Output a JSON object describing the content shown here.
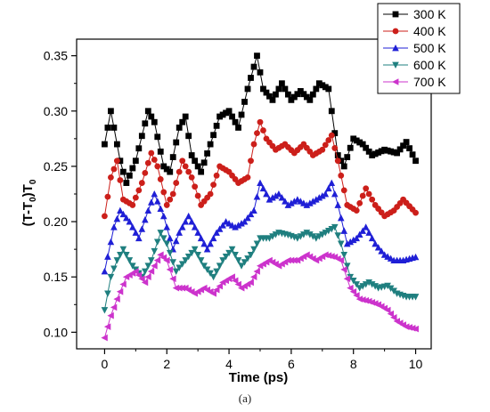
{
  "chart_data": {
    "type": "line",
    "xlabel": "Time (ps)",
    "ylabel": "(T-T0)T0",
    "ylabel_parts": {
      "a": "(T-T",
      "sub1": "0",
      "b": ")T",
      "sub2": "0"
    },
    "xlim": [
      -0.9,
      10.5
    ],
    "ylim": [
      0.085,
      0.365
    ],
    "xticks": [
      0,
      2,
      4,
      6,
      8,
      10
    ],
    "yticks": [
      0.1,
      0.15,
      0.2,
      0.25,
      0.3,
      0.35
    ],
    "ytick_labels": [
      "0.10",
      "0.15",
      "0.20",
      "0.25",
      "0.30",
      "0.35"
    ],
    "xtick_labels": [
      "0",
      "2",
      "4",
      "6",
      "8",
      "10"
    ],
    "grid": false,
    "legend_position": "top-right",
    "caption": "(a)",
    "series": [
      {
        "name": "300 K",
        "color": "#000000",
        "marker": "square",
        "x": [
          0,
          0.2,
          0.3,
          0.5,
          0.7,
          1.0,
          1.4,
          1.6,
          1.9,
          2.1,
          2.4,
          2.6,
          2.8,
          3.1,
          3.4,
          3.7,
          4.0,
          4.3,
          4.6,
          4.9,
          5.1,
          5.4,
          5.7,
          6.0,
          6.3,
          6.6,
          6.9,
          7.2,
          7.5,
          7.7,
          8.0,
          8.3,
          8.6,
          9.0,
          9.4,
          9.7,
          10.0
        ],
        "y": [
          0.27,
          0.3,
          0.285,
          0.255,
          0.235,
          0.255,
          0.3,
          0.29,
          0.25,
          0.245,
          0.285,
          0.295,
          0.26,
          0.245,
          0.27,
          0.295,
          0.3,
          0.285,
          0.32,
          0.35,
          0.32,
          0.31,
          0.325,
          0.31,
          0.318,
          0.31,
          0.325,
          0.32,
          0.26,
          0.25,
          0.275,
          0.27,
          0.26,
          0.265,
          0.262,
          0.272,
          0.255
        ]
      },
      {
        "name": "400 K",
        "color": "#cc1f1a",
        "marker": "circle",
        "x": [
          0,
          0.2,
          0.4,
          0.6,
          0.9,
          1.2,
          1.5,
          1.7,
          2.0,
          2.2,
          2.5,
          2.8,
          3.1,
          3.4,
          3.7,
          4.0,
          4.3,
          4.6,
          4.8,
          5.0,
          5.2,
          5.5,
          5.8,
          6.1,
          6.4,
          6.7,
          7.0,
          7.3,
          7.5,
          7.8,
          8.1,
          8.4,
          8.7,
          9.0,
          9.3,
          9.6,
          10.0
        ],
        "y": [
          0.205,
          0.24,
          0.255,
          0.22,
          0.215,
          0.235,
          0.262,
          0.25,
          0.215,
          0.225,
          0.255,
          0.24,
          0.215,
          0.225,
          0.25,
          0.245,
          0.235,
          0.24,
          0.27,
          0.29,
          0.275,
          0.265,
          0.27,
          0.262,
          0.27,
          0.26,
          0.265,
          0.278,
          0.255,
          0.215,
          0.21,
          0.23,
          0.215,
          0.205,
          0.21,
          0.22,
          0.208
        ]
      },
      {
        "name": "500 K",
        "color": "#1f1fd6",
        "marker": "triangle-up",
        "x": [
          0,
          0.3,
          0.5,
          0.8,
          1.1,
          1.4,
          1.6,
          1.9,
          2.2,
          2.4,
          2.7,
          3.0,
          3.3,
          3.6,
          3.9,
          4.2,
          4.5,
          4.8,
          5.0,
          5.3,
          5.6,
          5.9,
          6.2,
          6.5,
          6.8,
          7.1,
          7.3,
          7.5,
          7.8,
          8.1,
          8.4,
          8.7,
          9.0,
          9.3,
          9.6,
          10.0
        ],
        "y": [
          0.155,
          0.195,
          0.21,
          0.2,
          0.185,
          0.21,
          0.225,
          0.205,
          0.175,
          0.19,
          0.205,
          0.19,
          0.175,
          0.19,
          0.2,
          0.195,
          0.2,
          0.21,
          0.235,
          0.22,
          0.225,
          0.215,
          0.22,
          0.215,
          0.22,
          0.225,
          0.235,
          0.215,
          0.18,
          0.185,
          0.195,
          0.18,
          0.17,
          0.165,
          0.165,
          0.168
        ]
      },
      {
        "name": "600 K",
        "color": "#1f7f7f",
        "marker": "triangle-down",
        "x": [
          0,
          0.2,
          0.4,
          0.6,
          0.9,
          1.2,
          1.5,
          1.8,
          2.0,
          2.3,
          2.6,
          2.9,
          3.2,
          3.5,
          3.8,
          4.1,
          4.4,
          4.7,
          5.0,
          5.3,
          5.6,
          5.9,
          6.2,
          6.5,
          6.8,
          7.1,
          7.4,
          7.6,
          7.9,
          8.2,
          8.5,
          8.8,
          9.1,
          9.4,
          9.7,
          10.0
        ],
        "y": [
          0.12,
          0.15,
          0.165,
          0.175,
          0.16,
          0.15,
          0.165,
          0.19,
          0.18,
          0.155,
          0.165,
          0.175,
          0.16,
          0.15,
          0.165,
          0.175,
          0.16,
          0.17,
          0.185,
          0.185,
          0.19,
          0.188,
          0.185,
          0.19,
          0.185,
          0.19,
          0.195,
          0.18,
          0.15,
          0.14,
          0.145,
          0.14,
          0.142,
          0.135,
          0.132,
          0.132
        ]
      },
      {
        "name": "700 K",
        "color": "#cc33cc",
        "marker": "triangle-left",
        "x": [
          0,
          0.2,
          0.4,
          0.7,
          1.0,
          1.3,
          1.6,
          1.8,
          2.0,
          2.3,
          2.6,
          2.9,
          3.2,
          3.5,
          3.8,
          4.1,
          4.4,
          4.7,
          5.0,
          5.3,
          5.6,
          5.9,
          6.2,
          6.5,
          6.8,
          7.1,
          7.4,
          7.6,
          7.9,
          8.2,
          8.5,
          8.8,
          9.1,
          9.4,
          9.7,
          10.0
        ],
        "y": [
          0.095,
          0.115,
          0.13,
          0.15,
          0.155,
          0.145,
          0.16,
          0.17,
          0.165,
          0.14,
          0.14,
          0.135,
          0.14,
          0.135,
          0.145,
          0.15,
          0.14,
          0.145,
          0.16,
          0.165,
          0.16,
          0.165,
          0.165,
          0.17,
          0.165,
          0.17,
          0.168,
          0.165,
          0.14,
          0.13,
          0.128,
          0.125,
          0.12,
          0.11,
          0.105,
          0.103
        ]
      }
    ]
  }
}
